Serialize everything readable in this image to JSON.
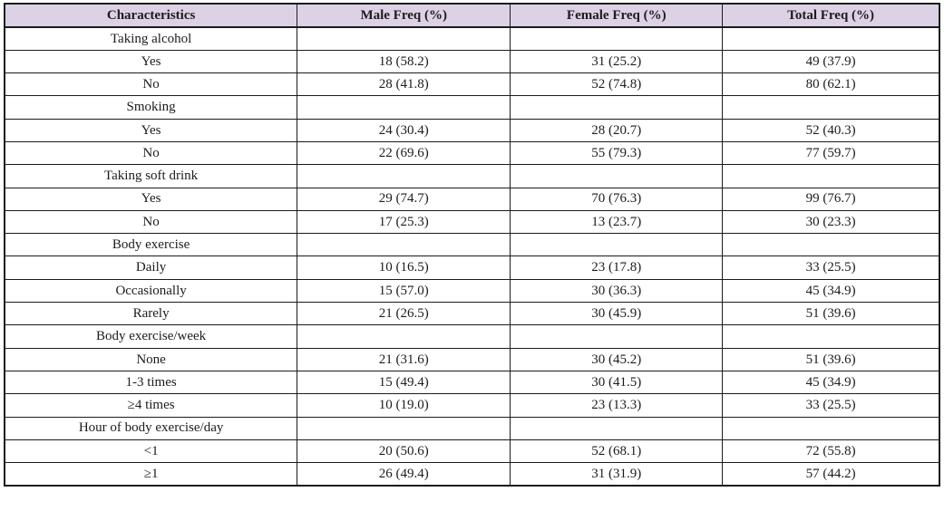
{
  "chart_data": {
    "type": "table",
    "columns": [
      "Characteristics",
      "Male Freq (%)",
      "Female Freq (%)",
      "Total Freq (%)"
    ],
    "sections": [
      {
        "label": "Taking alcohol",
        "rows": [
          {
            "label": "Yes",
            "male": "18 (58.2)",
            "female": "31 (25.2)",
            "total": "49 (37.9)"
          },
          {
            "label": "No",
            "male": "28 (41.8)",
            "female": "52 (74.8)",
            "total": "80 (62.1)"
          }
        ]
      },
      {
        "label": "Smoking",
        "rows": [
          {
            "label": "Yes",
            "male": "24 (30.4)",
            "female": "28 (20.7)",
            "total": "52 (40.3)"
          },
          {
            "label": "No",
            "male": "22 (69.6)",
            "female": "55 (79.3)",
            "total": "77 (59.7)"
          }
        ]
      },
      {
        "label": "Taking soft drink",
        "rows": [
          {
            "label": "Yes",
            "male": "29 (74.7)",
            "female": "70 (76.3)",
            "total": "99 (76.7)"
          },
          {
            "label": "No",
            "male": "17 (25.3)",
            "female": "13 (23.7)",
            "total": "30 (23.3)"
          }
        ]
      },
      {
        "label": "Body exercise",
        "rows": [
          {
            "label": "Daily",
            "male": "10 (16.5)",
            "female": "23 (17.8)",
            "total": "33 (25.5)"
          },
          {
            "label": "Occasionally",
            "male": "15 (57.0)",
            "female": "30 (36.3)",
            "total": "45 (34.9)"
          },
          {
            "label": "Rarely",
            "male": "21 (26.5)",
            "female": "30 (45.9)",
            "total": "51 (39.6)"
          }
        ]
      },
      {
        "label": "Body exercise/week",
        "rows": [
          {
            "label": "None",
            "male": "21 (31.6)",
            "female": "30 (45.2)",
            "total": "51 (39.6)"
          },
          {
            "label": "1-3 times",
            "male": "15 (49.4)",
            "female": "30 (41.5)",
            "total": "45 (34.9)"
          },
          {
            "label": "≥4 times",
            "male": "10 (19.0)",
            "female": "23 (13.3)",
            "total": "33 (25.5)"
          }
        ]
      },
      {
        "label": "Hour of body exercise/day",
        "rows": [
          {
            "label": "<1",
            "male": "20 (50.6)",
            "female": "52 (68.1)",
            "total": "72 (55.8)"
          },
          {
            "label": "≥1",
            "male": "26 (49.4)",
            "female": "31 (31.9)",
            "total": "57 (44.2)"
          }
        ]
      }
    ]
  },
  "style": {
    "header_bg": "#dcd2e6",
    "border_color": "#1b1b1b",
    "text_color": "#1c1c1c"
  }
}
